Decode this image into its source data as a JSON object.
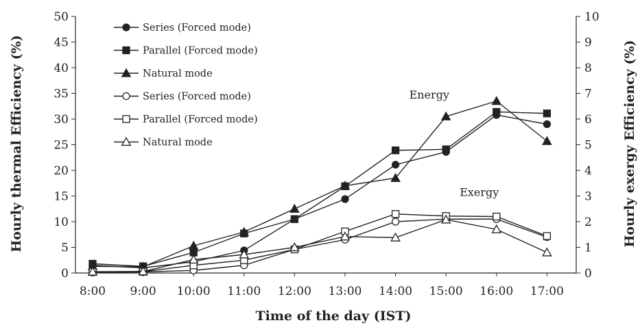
{
  "chart_data": {
    "type": "line",
    "x": [
      "8:00",
      "9:00",
      "10:00",
      "11:00",
      "12:00",
      "13:00",
      "14:00",
      "15:00",
      "16:00",
      "17:00"
    ],
    "xlabel": "Time of the day (IST)",
    "ylabel": "Hourly thermal Efficiency (%)",
    "y2label": "Hourly exergy Efficiency (%)",
    "ylim": [
      0,
      50
    ],
    "yticks": [
      0,
      5,
      10,
      15,
      20,
      25,
      30,
      35,
      40,
      45,
      50
    ],
    "y2lim": [
      0,
      10
    ],
    "y2ticks": [
      0,
      1,
      2,
      3,
      4,
      5,
      6,
      7,
      8,
      9,
      10
    ],
    "grid": false,
    "legend_position": "top-left",
    "annotations": [
      {
        "text": "Energy",
        "x": "14:00",
        "y": 34
      },
      {
        "text": "Exergy",
        "x": "15:00",
        "y": 15
      }
    ],
    "series": [
      {
        "name": "Series (Forced mode)",
        "group": "energy",
        "axis": "left",
        "marker": "filled-circle",
        "values": [
          1.5,
          1.0,
          2.2,
          4.4,
          10.5,
          14.4,
          21.1,
          23.6,
          30.8,
          29.0
        ]
      },
      {
        "name": "Parallel (Forced mode)",
        "group": "energy",
        "axis": "left",
        "marker": "filled-square",
        "values": [
          1.8,
          1.3,
          4.0,
          7.7,
          10.5,
          16.9,
          23.9,
          24.1,
          31.4,
          31.1
        ]
      },
      {
        "name": "Natural mode",
        "group": "energy",
        "axis": "left",
        "marker": "filled-triangle",
        "values": [
          1.3,
          1.2,
          5.3,
          8.0,
          12.5,
          17.0,
          18.5,
          30.5,
          33.5,
          25.7
        ]
      },
      {
        "name": "Series (Forced mode)",
        "group": "exergy",
        "axis": "right",
        "marker": "open-circle",
        "values": [
          0.02,
          0.04,
          0.1,
          0.3,
          0.92,
          1.3,
          2.0,
          2.1,
          2.1,
          1.4
        ]
      },
      {
        "name": "Parallel (Forced mode)",
        "group": "exergy",
        "axis": "right",
        "marker": "open-square",
        "values": [
          0.04,
          0.05,
          0.3,
          0.5,
          0.92,
          1.62,
          2.3,
          2.22,
          2.2,
          1.44
        ]
      },
      {
        "name": "Natural mode",
        "group": "exergy",
        "axis": "right",
        "marker": "open-triangle",
        "values": [
          0.05,
          0.06,
          0.52,
          0.72,
          1.0,
          1.42,
          1.38,
          2.08,
          1.7,
          0.8
        ]
      }
    ]
  }
}
